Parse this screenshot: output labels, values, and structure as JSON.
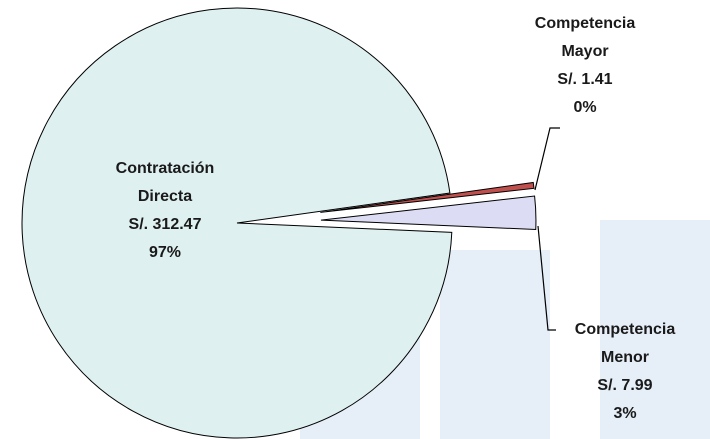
{
  "chart_data": {
    "type": "pie",
    "categories": [
      "Contratación Directa",
      "Competencia Mayor",
      "Competencia Menor"
    ],
    "values": [
      312.47,
      1.41,
      7.99
    ],
    "value_labels": [
      "S/. 312.47",
      "S/. 1.41",
      "S/. 7.99"
    ],
    "percent_labels": [
      "97%",
      "0%",
      "3%"
    ],
    "colors": [
      "#dff0f0",
      "#c0504d",
      "#dcdcf4"
    ]
  }
}
